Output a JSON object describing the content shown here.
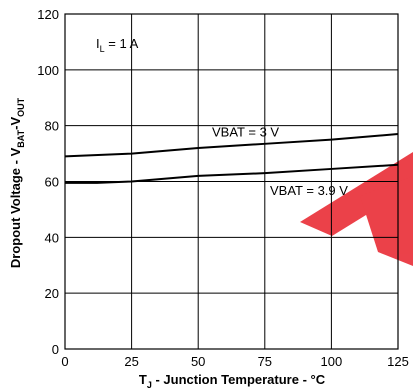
{
  "chart_data": {
    "type": "line",
    "xlabel": {
      "main": "T",
      "sub": "J",
      "rest": " - Junction Temperature - °C"
    },
    "ylabel": {
      "prefix": "Dropout Voltage - V",
      "sub1": "BAT",
      "mid": "-V",
      "sub2": "OUT"
    },
    "xlim": [
      0,
      125
    ],
    "ylim": [
      0,
      120
    ],
    "xticks": [
      0,
      25,
      50,
      75,
      100,
      125
    ],
    "yticks": [
      0,
      20,
      40,
      60,
      80,
      100,
      120
    ],
    "grid": true,
    "condition": {
      "main": "I",
      "sub": "L",
      "rest": " = 1 A"
    },
    "series": [
      {
        "name": "VBAT = 3 V",
        "x": [
          0,
          25,
          50,
          75,
          100,
          125
        ],
        "y": [
          69,
          70,
          72,
          73.5,
          75,
          77
        ]
      },
      {
        "name": "VBAT = 3.9 V",
        "x": [
          0,
          12,
          25,
          50,
          75,
          100,
          125
        ],
        "y": [
          59.5,
          59.5,
          60,
          62,
          63,
          64.5,
          66
        ]
      }
    ],
    "watermark_color": "#e8202a"
  }
}
